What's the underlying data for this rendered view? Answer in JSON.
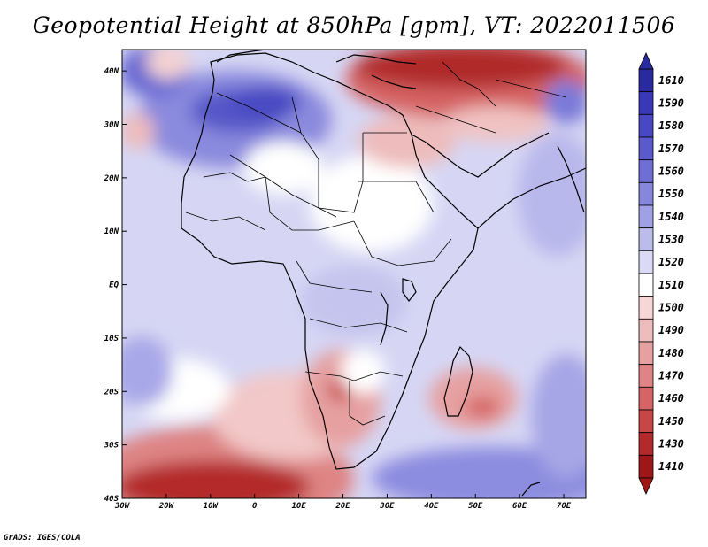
{
  "title": "Geopotential Height at 850hPa [gpm], VT: 2022011506",
  "credit": "GrADS: IGES/COLA",
  "axes": {
    "lat_labels": [
      "40N",
      "30N",
      "20N",
      "10N",
      "EQ",
      "10S",
      "20S",
      "30S",
      "40S"
    ],
    "lon_labels": [
      "30W",
      "20W",
      "10W",
      "0",
      "10E",
      "20E",
      "30E",
      "40E",
      "50E",
      "60E",
      "70E"
    ],
    "lat_range": [
      -40,
      44
    ],
    "lon_range": [
      -30,
      75
    ]
  },
  "colorbar": {
    "labels": [
      "1610",
      "1590",
      "1580",
      "1570",
      "1560",
      "1550",
      "1540",
      "1530",
      "1520",
      "1510",
      "1500",
      "1490",
      "1480",
      "1470",
      "1460",
      "1450",
      "1430",
      "1410"
    ],
    "colors": [
      "#2a2aa0",
      "#3838b8",
      "#4848c4",
      "#5a5acc",
      "#6e6ed4",
      "#8686dc",
      "#a0a0e4",
      "#bcbcec",
      "#dadaf6",
      "#ffffff",
      "#f6d6d6",
      "#eebcbc",
      "#e6a0a0",
      "#de8484",
      "#d66464",
      "#c84646",
      "#b42a2a",
      "#9e1616"
    ],
    "unit": "gpm"
  }
}
